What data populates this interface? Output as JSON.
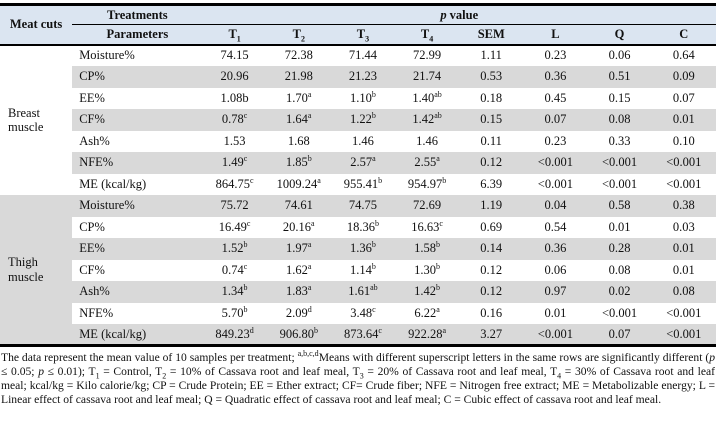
{
  "colors": {
    "header_bg": "#dbe5f1",
    "stripe": "#d9d9d9",
    "border": "#000000"
  },
  "table": {
    "corner_label": "Meat cuts",
    "treatments_label": "Treatments",
    "parameters_label": "Parameters",
    "p_value": {
      "italic": "p",
      "rest": "value"
    },
    "columns": [
      {
        "label": "T",
        "sub": "1"
      },
      {
        "label": "T",
        "sub": "2"
      },
      {
        "label": "T",
        "sub": "3"
      },
      {
        "label": "T",
        "sub": "4"
      },
      {
        "label": "SEM"
      },
      {
        "label": "L"
      },
      {
        "label": "Q"
      },
      {
        "label": "C"
      }
    ],
    "sections": [
      {
        "group": "Breast muscle",
        "rows": [
          {
            "param": "Moisture%",
            "cells": [
              {
                "v": "74.15"
              },
              {
                "v": "72.38"
              },
              {
                "v": "71.44"
              },
              {
                "v": "72.99"
              },
              {
                "v": "1.11"
              },
              {
                "v": "0.23"
              },
              {
                "v": "0.06"
              },
              {
                "v": "0.64"
              }
            ]
          },
          {
            "param": "CP%",
            "cells": [
              {
                "v": "20.96"
              },
              {
                "v": "21.98"
              },
              {
                "v": "21.23"
              },
              {
                "v": "21.74"
              },
              {
                "v": "0.53"
              },
              {
                "v": "0.36"
              },
              {
                "v": "0.51"
              },
              {
                "v": "0.09"
              }
            ]
          },
          {
            "param": "EE%",
            "cells": [
              {
                "v": "1.08b"
              },
              {
                "v": "1.70",
                "s": "a"
              },
              {
                "v": "1.10",
                "s": "b"
              },
              {
                "v": "1.40",
                "s": "ab"
              },
              {
                "v": "0.18"
              },
              {
                "v": "0.45"
              },
              {
                "v": "0.15"
              },
              {
                "v": "0.07"
              }
            ]
          },
          {
            "param": "CF%",
            "cells": [
              {
                "v": "0.78",
                "s": "c"
              },
              {
                "v": "1.64",
                "s": "a"
              },
              {
                "v": "1.22",
                "s": "b"
              },
              {
                "v": "1.42",
                "s": "ab"
              },
              {
                "v": "0.15"
              },
              {
                "v": "0.07"
              },
              {
                "v": "0.08"
              },
              {
                "v": "0.01"
              }
            ]
          },
          {
            "param": "Ash%",
            "cells": [
              {
                "v": "1.53"
              },
              {
                "v": "1.68"
              },
              {
                "v": "1.46"
              },
              {
                "v": "1.46"
              },
              {
                "v": "0.11"
              },
              {
                "v": "0.23"
              },
              {
                "v": "0.33"
              },
              {
                "v": "0.10"
              }
            ]
          },
          {
            "param": "NFE%",
            "cells": [
              {
                "v": "1.49",
                "s": "c"
              },
              {
                "v": "1.85",
                "s": "b"
              },
              {
                "v": "2.57",
                "s": "a"
              },
              {
                "v": "2.55",
                "s": "a"
              },
              {
                "v": "0.12"
              },
              {
                "v": "<0.001"
              },
              {
                "v": "<0.001"
              },
              {
                "v": "<0.001"
              }
            ]
          },
          {
            "param": "ME (kcal/kg)",
            "cells": [
              {
                "v": "864.75",
                "s": "c"
              },
              {
                "v": "1009.24",
                "s": "a"
              },
              {
                "v": "955.41",
                "s": "b"
              },
              {
                "v": "954.97",
                "s": "b"
              },
              {
                "v": "6.39"
              },
              {
                "v": "<0.001"
              },
              {
                "v": "<0.001"
              },
              {
                "v": "<0.001"
              }
            ]
          }
        ]
      },
      {
        "group": "Thigh muscle",
        "rows": [
          {
            "param": "Moisture%",
            "cells": [
              {
                "v": "75.72"
              },
              {
                "v": "74.61"
              },
              {
                "v": "74.75"
              },
              {
                "v": "72.69"
              },
              {
                "v": "1.19"
              },
              {
                "v": "0.04"
              },
              {
                "v": "0.58"
              },
              {
                "v": "0.38"
              }
            ]
          },
          {
            "param": "CP%",
            "cells": [
              {
                "v": "16.49",
                "s": "c"
              },
              {
                "v": "20.16",
                "s": "a"
              },
              {
                "v": "18.36",
                "s": "b"
              },
              {
                "v": "16.63",
                "s": "c"
              },
              {
                "v": "0.69"
              },
              {
                "v": "0.54"
              },
              {
                "v": "0.01"
              },
              {
                "v": "0.03"
              }
            ]
          },
          {
            "param": "EE%",
            "cells": [
              {
                "v": "1.52",
                "s": "b"
              },
              {
                "v": "1.97",
                "s": "a"
              },
              {
                "v": "1.36",
                "s": "b"
              },
              {
                "v": "1.58",
                "s": "b"
              },
              {
                "v": "0.14"
              },
              {
                "v": "0.36"
              },
              {
                "v": "0.28"
              },
              {
                "v": "0.01"
              }
            ]
          },
          {
            "param": "CF%",
            "cells": [
              {
                "v": "0.74",
                "s": "c"
              },
              {
                "v": "1.62",
                "s": "a"
              },
              {
                "v": "1.14",
                "s": "b"
              },
              {
                "v": "1.30",
                "s": "b"
              },
              {
                "v": "0.12"
              },
              {
                "v": "0.06"
              },
              {
                "v": "0.08"
              },
              {
                "v": "0.01"
              }
            ]
          },
          {
            "param": "Ash%",
            "cells": [
              {
                "v": "1.34",
                "s": "b"
              },
              {
                "v": "1.83",
                "s": "a"
              },
              {
                "v": "1.61",
                "s": "ab"
              },
              {
                "v": "1.42",
                "s": "b"
              },
              {
                "v": "0.12"
              },
              {
                "v": "0.97"
              },
              {
                "v": "0.02"
              },
              {
                "v": "0.08"
              }
            ]
          },
          {
            "param": "NFE%",
            "cells": [
              {
                "v": "5.70",
                "s": "b"
              },
              {
                "v": "2.09",
                "s": "d"
              },
              {
                "v": "3.48",
                "s": "c"
              },
              {
                "v": "6.22",
                "s": "a"
              },
              {
                "v": "0.16"
              },
              {
                "v": "0.01"
              },
              {
                "v": "<0.001"
              },
              {
                "v": "<0.001"
              }
            ]
          },
          {
            "param": "ME (kcal/kg)",
            "cells": [
              {
                "v": "849.23",
                "s": "d"
              },
              {
                "v": "906.80",
                "s": "b"
              },
              {
                "v": "873.64",
                "s": "c"
              },
              {
                "v": "922.28",
                "s": "a"
              },
              {
                "v": "3.27"
              },
              {
                "v": "<0.001"
              },
              {
                "v": "0.07"
              },
              {
                "v": "<0.001"
              }
            ]
          }
        ]
      }
    ]
  },
  "footnote": [
    {
      "t": "The data represent the mean value of 10 samples per treatment; "
    },
    {
      "sup": "a,b,c,d"
    },
    {
      "t": "Means with different superscript letters in the same rows are significantly different ("
    },
    {
      "i": "p"
    },
    {
      "t": " ≤ 0.05; "
    },
    {
      "i": "p"
    },
    {
      "t": " ≤ 0.01); T"
    },
    {
      "sub": "1"
    },
    {
      "t": " = Control, T"
    },
    {
      "sub": "2"
    },
    {
      "t": " = 10% of Cassava root and leaf meal, T"
    },
    {
      "sub": "3"
    },
    {
      "t": " = 20% of Cassava root and leaf meal, T"
    },
    {
      "sub": "4"
    },
    {
      "t": " = 30% of Cassava root and leaf meal; kcal/kg = Kilo calorie/kg; CP = Crude Protein; EE = Ether extract; CF= Crude fiber; NFE = Nitrogen free extract; ME = Metabolizable energy; L = Linear effect of cassava root and leaf meal; Q = Quadratic effect of cassava root and leaf meal; C = Cubic effect of cassava root and leaf meal."
    }
  ]
}
